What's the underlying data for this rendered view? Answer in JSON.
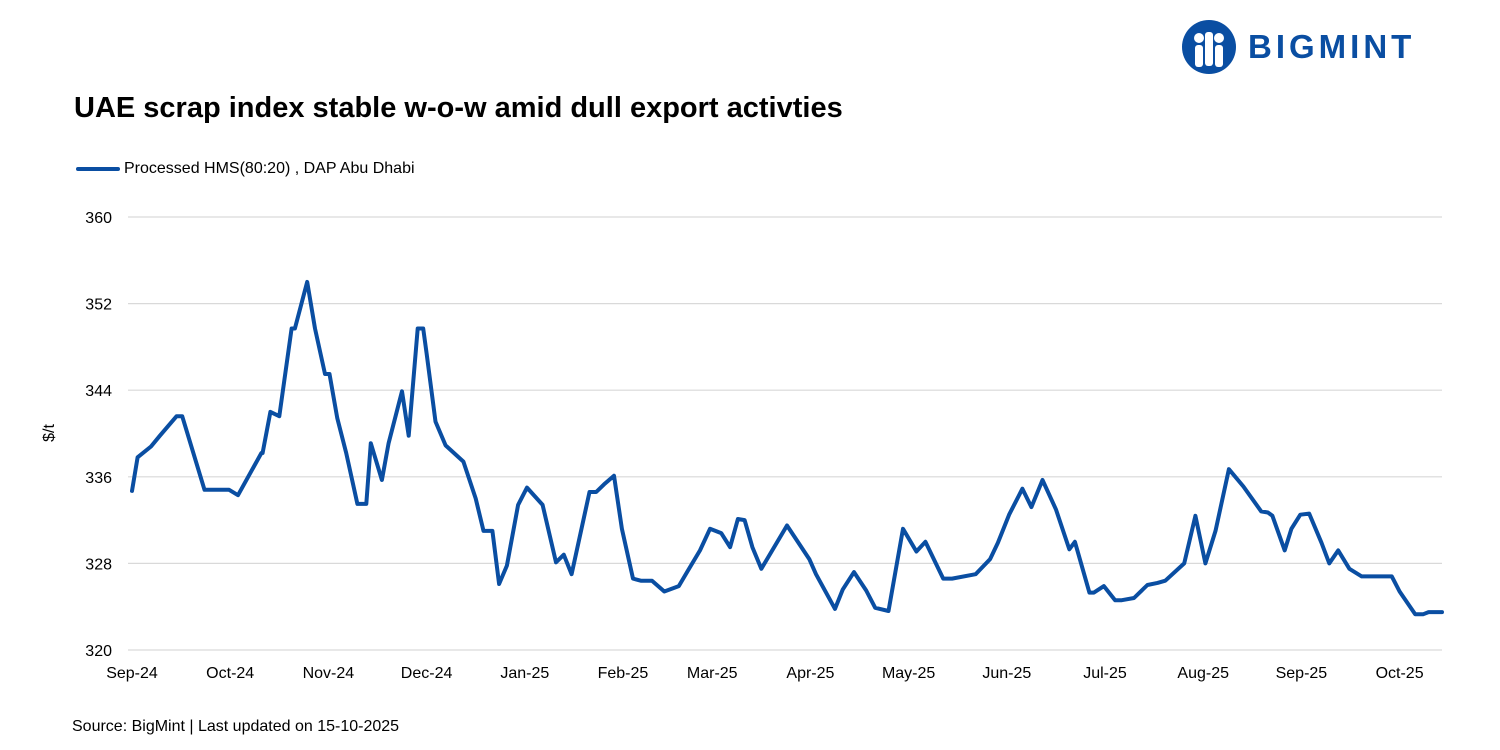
{
  "header": {
    "title": "UAE scrap index stable w-o-w amid dull export activties",
    "logo_text": "BIGMINT"
  },
  "footer": {
    "source": "Source: BigMint | Last updated on 15-10-2025"
  },
  "colors": {
    "series": "#0a4ea2",
    "grid": "#d9d9d9"
  },
  "chart_data": {
    "type": "line",
    "title": "UAE scrap index stable w-o-w amid dull export activties",
    "ylabel": "$/t",
    "xlabel": "",
    "ylim": [
      320,
      360
    ],
    "yticks": [
      320,
      328,
      336,
      344,
      352,
      360
    ],
    "grid": true,
    "legend_position": "top-left",
    "x_tick_labels": [
      "Sep-24",
      "Oct-24",
      "Nov-24",
      "Dec-24",
      "Jan-25",
      "Feb-25",
      "Mar-25",
      "Apr-25",
      "May-25",
      "Jun-25",
      "Jul-25",
      "Aug-25",
      "Sep-25",
      "Oct-25"
    ],
    "x_tick_positions": [
      0,
      4.4,
      8.8,
      13.2,
      17.6,
      22.0,
      26.0,
      30.4,
      34.8,
      39.2,
      43.6,
      48.0,
      52.4,
      56.8
    ],
    "series": [
      {
        "name": "Processed HMS(80:20) , DAP Abu Dhabi",
        "x": [
          0,
          0.25,
          0.85,
          1.25,
          2.0,
          2.25,
          3.25,
          3.25,
          3.9,
          4.0,
          4.35,
          4.75,
          5.8,
          5.85,
          6.2,
          6.6,
          7.15,
          7.3,
          7.85,
          8.2,
          8.65,
          8.85,
          9.2,
          9.6,
          10.1,
          10.5,
          10.7,
          11.2,
          11.5,
          12.1,
          12.4,
          12.8,
          13.05,
          13.2,
          13.6,
          14.05,
          14.85,
          15.4,
          15.75,
          16.15,
          16.45,
          16.8,
          17.3,
          17.7,
          18.4,
          19.0,
          19.35,
          19.7,
          20.5,
          20.8,
          21.15,
          21.6,
          21.95,
          22.45,
          22.8,
          23.3,
          23.85,
          24.5,
          24.9,
          25.45,
          25.9,
          26.4,
          26.8,
          27.15,
          27.45,
          27.8,
          28.2,
          29.35,
          30.35,
          30.65,
          31.5,
          31.85,
          32.35,
          32.9,
          33.3,
          33.9,
          34.55,
          35.15,
          35.55,
          36.35,
          36.75,
          37.8,
          38.45,
          38.8,
          39.3,
          39.9,
          40.3,
          40.8,
          41.4,
          42.0,
          42.25,
          42.9,
          43.1,
          43.55,
          44.05,
          44.35,
          44.9,
          45.5,
          45.95,
          46.3,
          47.15,
          47.65,
          48.1,
          48.55,
          49.15,
          49.8,
          50.6,
          50.9,
          51.1,
          51.65,
          51.95,
          52.35,
          52.75,
          53.3,
          53.65,
          54.05,
          54.55,
          55.1,
          55.6,
          55.9,
          56.05,
          56.45,
          56.8,
          57.5,
          57.85,
          58.1,
          58.4,
          58.6,
          58.7
        ],
        "values": [
          334.7,
          337.8,
          338.8,
          339.8,
          341.6,
          341.6,
          334.8,
          334.8,
          334.8,
          334.8,
          334.8,
          334.3,
          338.2,
          338.2,
          342.0,
          341.6,
          349.7,
          349.7,
          354.0,
          349.7,
          345.5,
          345.5,
          341.4,
          338.2,
          333.5,
          333.5,
          339.1,
          335.7,
          339.1,
          343.9,
          339.8,
          349.7,
          349.7,
          347.4,
          341.1,
          338.9,
          337.4,
          334.0,
          331.0,
          331.0,
          326.1,
          327.8,
          333.4,
          335.0,
          333.4,
          328.1,
          328.8,
          327.0,
          334.6,
          334.6,
          335.3,
          336.1,
          331.2,
          326.6,
          326.4,
          326.4,
          325.4,
          325.9,
          327.3,
          329.2,
          331.2,
          330.8,
          329.5,
          332.1,
          332.0,
          329.5,
          327.5,
          331.5,
          328.4,
          327.0,
          323.8,
          325.6,
          327.2,
          325.5,
          323.9,
          323.6,
          331.2,
          329.1,
          330.0,
          326.6,
          326.6,
          327.0,
          328.4,
          329.9,
          332.5,
          334.9,
          333.2,
          335.7,
          333.0,
          329.3,
          330.0,
          325.3,
          325.3,
          325.9,
          324.6,
          324.6,
          324.8,
          326.0,
          326.2,
          326.4,
          328.0,
          332.4,
          328.0,
          331.0,
          336.7,
          335.1,
          332.8,
          332.7,
          332.4,
          329.2,
          331.2,
          332.5,
          332.6,
          329.9,
          328.0,
          329.2,
          327.5,
          326.8,
          326.8,
          326.8,
          326.8,
          326.8,
          325.4,
          323.3,
          323.3,
          323.5,
          323.5,
          323.5,
          323.5
        ]
      }
    ]
  }
}
